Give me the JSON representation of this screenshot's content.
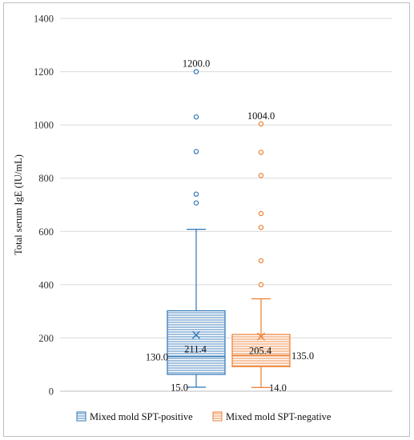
{
  "chart_data": {
    "type": "box",
    "ylabel": "Total serum IgE (IU/mL)",
    "ylim": [
      0,
      1400
    ],
    "yticks": [
      0,
      200,
      400,
      600,
      800,
      1000,
      1200,
      1400
    ],
    "grid": true,
    "legend_position": "bottom",
    "series": [
      {
        "name": "Mixed mold SPT-positive",
        "color": "#2e75b6",
        "min": 15.0,
        "q1": 63,
        "median": 130.0,
        "q3": 302,
        "whisker_high": 608,
        "mean": 211.4,
        "outliers": [
          707,
          740,
          900,
          1030,
          1200.0
        ],
        "labels": {
          "max": "1200.0",
          "mean": "211.4",
          "median": "130.0",
          "min": "15.0"
        }
      },
      {
        "name": "Mixed mold SPT-negative",
        "color": "#ed7d31",
        "min": 14.0,
        "q1": 92,
        "median": 135.0,
        "q3": 213,
        "whisker_high": 347,
        "mean": 205.4,
        "outliers": [
          400,
          490,
          615,
          667,
          810,
          897,
          1004.0
        ],
        "labels": {
          "max": "1004.0",
          "mean": "205.4",
          "median": "135.0",
          "min": "14.0"
        }
      }
    ]
  }
}
